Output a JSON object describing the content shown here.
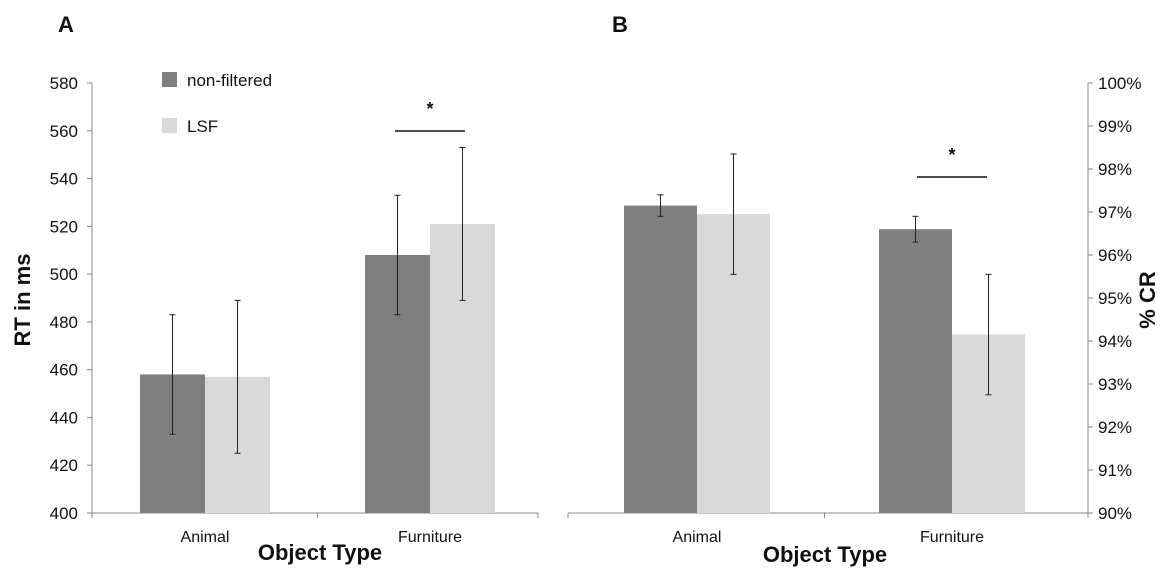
{
  "chart_data": [
    {
      "panel_label": "A",
      "type": "bar",
      "categories": [
        "Animal",
        "Furniture"
      ],
      "series": [
        {
          "name": "non-filtered",
          "values": [
            458,
            508
          ],
          "errors": [
            25,
            25
          ],
          "color": "#7f7f7f"
        },
        {
          "name": "LSF",
          "values": [
            457,
            521
          ],
          "errors": [
            32,
            32
          ],
          "color": "#d9d9d9"
        }
      ],
      "xlabel": "Object Type",
      "ylabel": "RT in ms",
      "ylim": [
        400,
        580
      ],
      "yticks": [
        "400",
        "420",
        "440",
        "460",
        "480",
        "500",
        "520",
        "540",
        "560",
        "580"
      ],
      "legend": "top-left",
      "significance": [
        {
          "category": "Furniture",
          "label": "*"
        }
      ]
    },
    {
      "panel_label": "B",
      "type": "bar",
      "categories": [
        "Animal",
        "Furniture"
      ],
      "series": [
        {
          "name": "non-filtered",
          "values": [
            97.15,
            96.6
          ],
          "errors": [
            0.25,
            0.3
          ],
          "color": "#7f7f7f"
        },
        {
          "name": "LSF",
          "values": [
            96.95,
            94.15
          ],
          "errors": [
            1.4,
            1.4
          ],
          "color": "#d9d9d9"
        }
      ],
      "xlabel": "Object Type",
      "ylabel": "% CR",
      "ylim": [
        90,
        100
      ],
      "yticks": [
        "90%",
        "91%",
        "92%",
        "93%",
        "94%",
        "95%",
        "96%",
        "97%",
        "98%",
        "99%",
        "100%"
      ],
      "y_axis_side": "right",
      "significance": [
        {
          "category": "Furniture",
          "label": "*"
        }
      ]
    }
  ]
}
